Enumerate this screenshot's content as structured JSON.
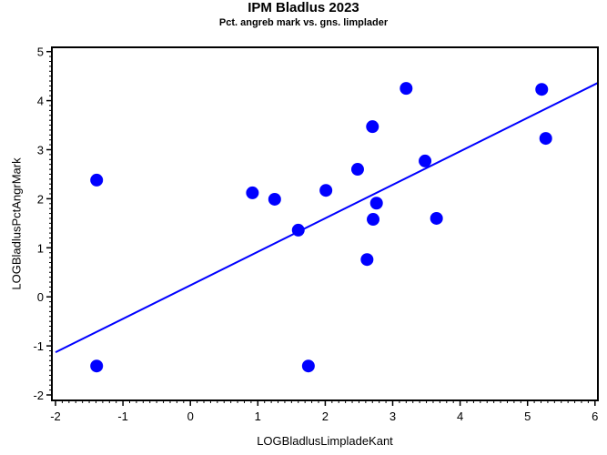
{
  "chart_data": {
    "type": "scatter",
    "title": "IPM Bladlus 2023",
    "subtitle": "Pct. angreb mark vs. gns. limplader",
    "xlabel": "LOGBladlusLimpladeKant",
    "ylabel": "LOGBladlusPctAngrMark",
    "xlim": [
      -2,
      6
    ],
    "ylim": [
      -2,
      5
    ],
    "xticks": [
      -2,
      -1,
      0,
      1,
      2,
      3,
      4,
      5,
      6
    ],
    "yticks": [
      -2,
      -1,
      0,
      1,
      2,
      3,
      4,
      5
    ],
    "grid": false,
    "legend": null,
    "marker_color": "#0000ff",
    "line_color": "#0000ff",
    "series": [
      {
        "name": "observations",
        "kind": "scatter",
        "points": [
          {
            "x": -1.39,
            "y": 2.38
          },
          {
            "x": -1.39,
            "y": -1.41
          },
          {
            "x": 0.92,
            "y": 2.12
          },
          {
            "x": 1.25,
            "y": 1.99
          },
          {
            "x": 1.6,
            "y": 1.36
          },
          {
            "x": 1.75,
            "y": -1.41
          },
          {
            "x": 2.01,
            "y": 2.17
          },
          {
            "x": 2.48,
            "y": 2.6
          },
          {
            "x": 2.62,
            "y": 0.76
          },
          {
            "x": 2.7,
            "y": 3.47
          },
          {
            "x": 2.71,
            "y": 1.58
          },
          {
            "x": 2.76,
            "y": 1.91
          },
          {
            "x": 3.2,
            "y": 4.25
          },
          {
            "x": 3.48,
            "y": 2.77
          },
          {
            "x": 3.65,
            "y": 1.6
          },
          {
            "x": 5.21,
            "y": 4.23
          },
          {
            "x": 5.27,
            "y": 3.23
          }
        ]
      },
      {
        "name": "regression line",
        "kind": "line",
        "points": [
          {
            "x": -2.0,
            "y": -1.13
          },
          {
            "x": 6.04,
            "y": 4.36
          }
        ]
      }
    ]
  }
}
